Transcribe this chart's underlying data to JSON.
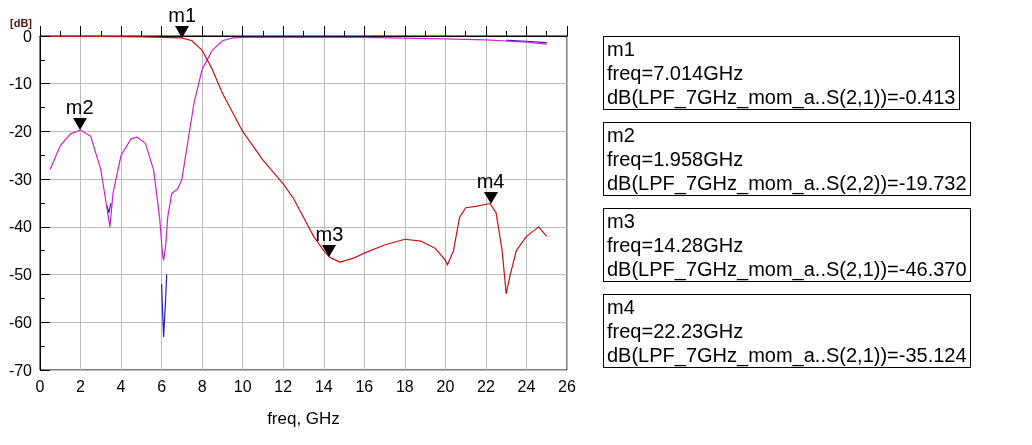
{
  "chart_data": {
    "type": "line",
    "xlabel": "freq, GHz",
    "ylabel": "[dB]",
    "xlim": [
      0,
      26
    ],
    "xticks": [
      0,
      2,
      4,
      6,
      8,
      10,
      12,
      14,
      16,
      18,
      20,
      22,
      24,
      26
    ],
    "ylim": [
      -70,
      0
    ],
    "yticks": [
      -70,
      -60,
      -50,
      -40,
      -30,
      -20,
      -10,
      0
    ],
    "grid": true,
    "marker": "none",
    "line_style": "solid",
    "series": [
      {
        "color": "#2020c8",
        "x": [
          3.3,
          3.4,
          3.5,
          4.5,
          6.0,
          6.05,
          6.1,
          6.2,
          6.25,
          15,
          23,
          24,
          25
        ],
        "values": [
          -35.5,
          -37,
          -35,
          null,
          -52,
          -58,
          -63,
          -55,
          -50,
          null,
          -0.9,
          -1.1,
          -1.4
        ]
      },
      {
        "color": "#d020d0",
        "x": [
          0.5,
          1,
          1.5,
          2,
          2.5,
          3,
          3.3,
          3.45,
          3.6,
          4,
          4.5,
          4.8,
          5.2,
          5.6,
          5.9,
          6.05,
          6.1,
          6.2,
          6.3,
          6.5,
          6.8,
          7,
          7.3,
          7.6,
          8,
          8.5,
          9,
          9.5,
          10,
          12,
          16,
          20,
          22,
          24,
          25
        ],
        "values": [
          -28,
          -23,
          -20.5,
          -19.7,
          -21,
          -28,
          -36,
          -40,
          -33,
          -25,
          -21.5,
          -21.2,
          -22.5,
          -28,
          -38,
          -46,
          -47,
          -44,
          -38,
          -33,
          -32,
          -30,
          -22,
          -14,
          -7,
          -3,
          -1,
          -0.4,
          -0.3,
          -0.3,
          -0.3,
          -0.6,
          -0.8,
          -1.3,
          -1.7
        ]
      },
      {
        "color": "#cc1010",
        "x": [
          0.5,
          3,
          5,
          6,
          7,
          7.5,
          8,
          8.5,
          9,
          10,
          11,
          12,
          12.5,
          13,
          13.5,
          14,
          14.3,
          14.8,
          15.5,
          16,
          17,
          18,
          18.8,
          19.5,
          20,
          20.1,
          20.4,
          20.7,
          21,
          21.5,
          22.2,
          22.5,
          22.8,
          23,
          23.2,
          23.5,
          24,
          24.6,
          25
        ],
        "values": [
          -0.1,
          -0.1,
          -0.2,
          -0.3,
          -0.4,
          -1,
          -3,
          -7,
          -12,
          -20,
          -26,
          -31,
          -34,
          -38,
          -42,
          -45,
          -46.4,
          -47.4,
          -46.5,
          -45.5,
          -43.8,
          -42.6,
          -43,
          -44.5,
          -47,
          -48,
          -45,
          -38,
          -36,
          -35.7,
          -35.1,
          -37,
          -45,
          -54,
          -50,
          -45,
          -42,
          -40,
          -42
        ]
      }
    ],
    "annotations": [
      {
        "text": "m1",
        "x": 7.014,
        "y": -0.413
      },
      {
        "text": "m2",
        "x": 1.958,
        "y": -19.732
      },
      {
        "text": "m3",
        "x": 14.28,
        "y": -46.37
      },
      {
        "text": "m4",
        "x": 22.23,
        "y": -35.124
      },
      "m1\nfreq=7.014GHz\ndB(LPF_7GHz_mom_a..S(2,1))=-0.413",
      "m2\nfreq=1.958GHz\ndB(LPF_7GHz_mom_a..S(2,2))=-19.732",
      "m3\nfreq=14.28GHz\ndB(LPF_7GHz_mom_a..S(2,1))=-46.370",
      "m4\nfreq=22.23GHz\ndB(LPF_7GHz_mom_a..S(2,1))=-35.124"
    ]
  }
}
